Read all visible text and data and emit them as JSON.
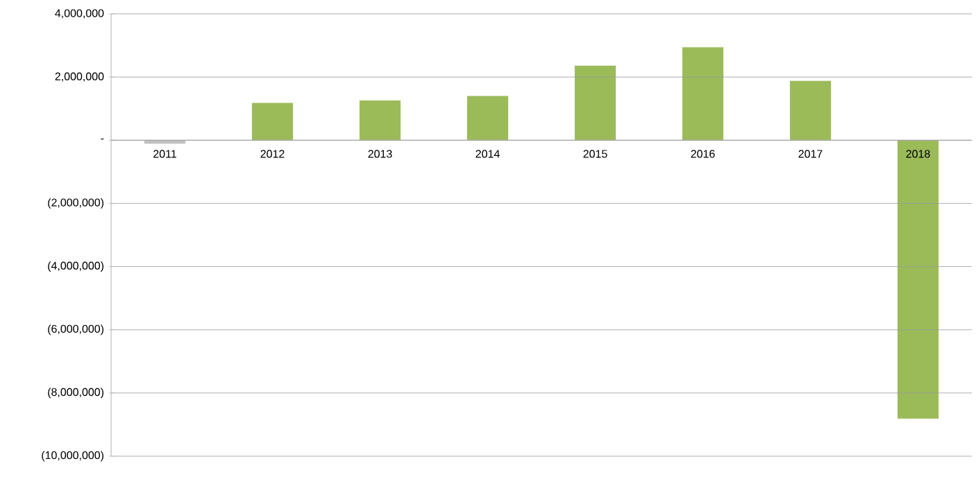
{
  "chart_data": {
    "type": "bar",
    "categories": [
      "2011",
      "2012",
      "2013",
      "2014",
      "2015",
      "2016",
      "2017",
      "2018"
    ],
    "values": [
      -120000,
      1190000,
      1270000,
      1410000,
      2370000,
      2950000,
      1890000,
      -8820000
    ],
    "colors": [
      "#c0c0c0",
      "#9bbb59",
      "#9bbb59",
      "#9bbb59",
      "#9bbb59",
      "#9bbb59",
      "#9bbb59",
      "#9bbb59"
    ],
    "ylim": [
      -10000000,
      4000000
    ],
    "yticks": [
      {
        "value": -10000000,
        "label": "(10,000,000)"
      },
      {
        "value": -8000000,
        "label": "(8,000,000)"
      },
      {
        "value": -6000000,
        "label": "(6,000,000)"
      },
      {
        "value": -4000000,
        "label": "(4,000,000)"
      },
      {
        "value": -2000000,
        "label": "(2,000,000)"
      },
      {
        "value": 0,
        "label": "-"
      },
      {
        "value": 2000000,
        "label": "2,000,000"
      },
      {
        "value": 4000000,
        "label": "4,000,000"
      }
    ],
    "grid": "y"
  }
}
